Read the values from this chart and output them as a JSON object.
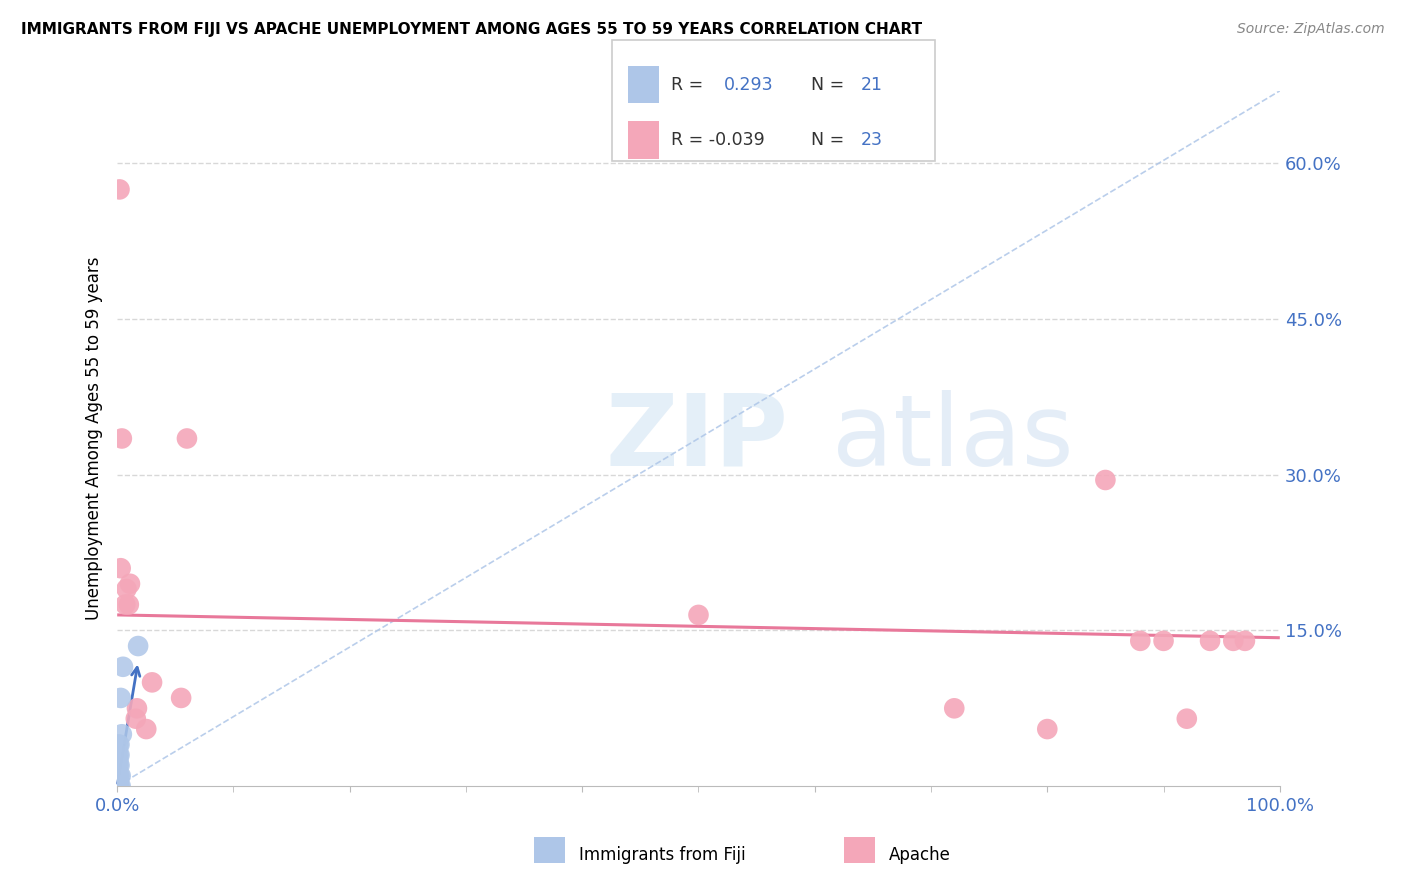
{
  "title": "IMMIGRANTS FROM FIJI VS APACHE UNEMPLOYMENT AMONG AGES 55 TO 59 YEARS CORRELATION CHART",
  "source": "Source: ZipAtlas.com",
  "ylabel": "Unemployment Among Ages 55 to 59 years",
  "xlim": [
    0.0,
    1.0
  ],
  "ylim": [
    0.0,
    0.67
  ],
  "xticks": [
    0.0,
    0.2,
    0.4,
    0.6,
    0.8,
    1.0
  ],
  "xticklabels": [
    "0.0%",
    "",
    "",
    "",
    "",
    "100.0%"
  ],
  "yticks": [
    0.15,
    0.3,
    0.45,
    0.6
  ],
  "yticklabels": [
    "15.0%",
    "30.0%",
    "45.0%",
    "60.0%"
  ],
  "fiji_color": "#aec6e8",
  "apache_color": "#f4a7b9",
  "fiji_R": 0.293,
  "fiji_N": 21,
  "apache_R": -0.039,
  "apache_N": 23,
  "fiji_points_x": [
    0.001,
    0.001,
    0.001,
    0.001,
    0.001,
    0.001,
    0.001,
    0.001,
    0.001,
    0.001,
    0.002,
    0.002,
    0.002,
    0.002,
    0.002,
    0.003,
    0.003,
    0.003,
    0.004,
    0.005,
    0.018
  ],
  "fiji_points_y": [
    0.0,
    0.0,
    0.0,
    0.0,
    0.005,
    0.01,
    0.02,
    0.025,
    0.03,
    0.04,
    0.0,
    0.01,
    0.02,
    0.03,
    0.04,
    0.0,
    0.01,
    0.085,
    0.05,
    0.115,
    0.135
  ],
  "apache_points_x": [
    0.002,
    0.003,
    0.004,
    0.007,
    0.008,
    0.01,
    0.011,
    0.016,
    0.017,
    0.025,
    0.03,
    0.055,
    0.06,
    0.5,
    0.72,
    0.8,
    0.85,
    0.88,
    0.9,
    0.92,
    0.94,
    0.96,
    0.97
  ],
  "apache_points_y": [
    0.575,
    0.21,
    0.335,
    0.175,
    0.19,
    0.175,
    0.195,
    0.065,
    0.075,
    0.055,
    0.1,
    0.085,
    0.335,
    0.165,
    0.075,
    0.055,
    0.295,
    0.14,
    0.14,
    0.065,
    0.14,
    0.14,
    0.14
  ],
  "diagonal_line_color": "#aec6e8",
  "apache_trend_color": "#e8789a",
  "fiji_trend_color": "#4472c4",
  "watermark_zip": "ZIP",
  "watermark_atlas": "atlas",
  "background_color": "#ffffff",
  "grid_color": "#d8d8d8",
  "tick_color": "#4472c4",
  "legend_R_color": "#333333",
  "legend_val_color": "#4472c4"
}
